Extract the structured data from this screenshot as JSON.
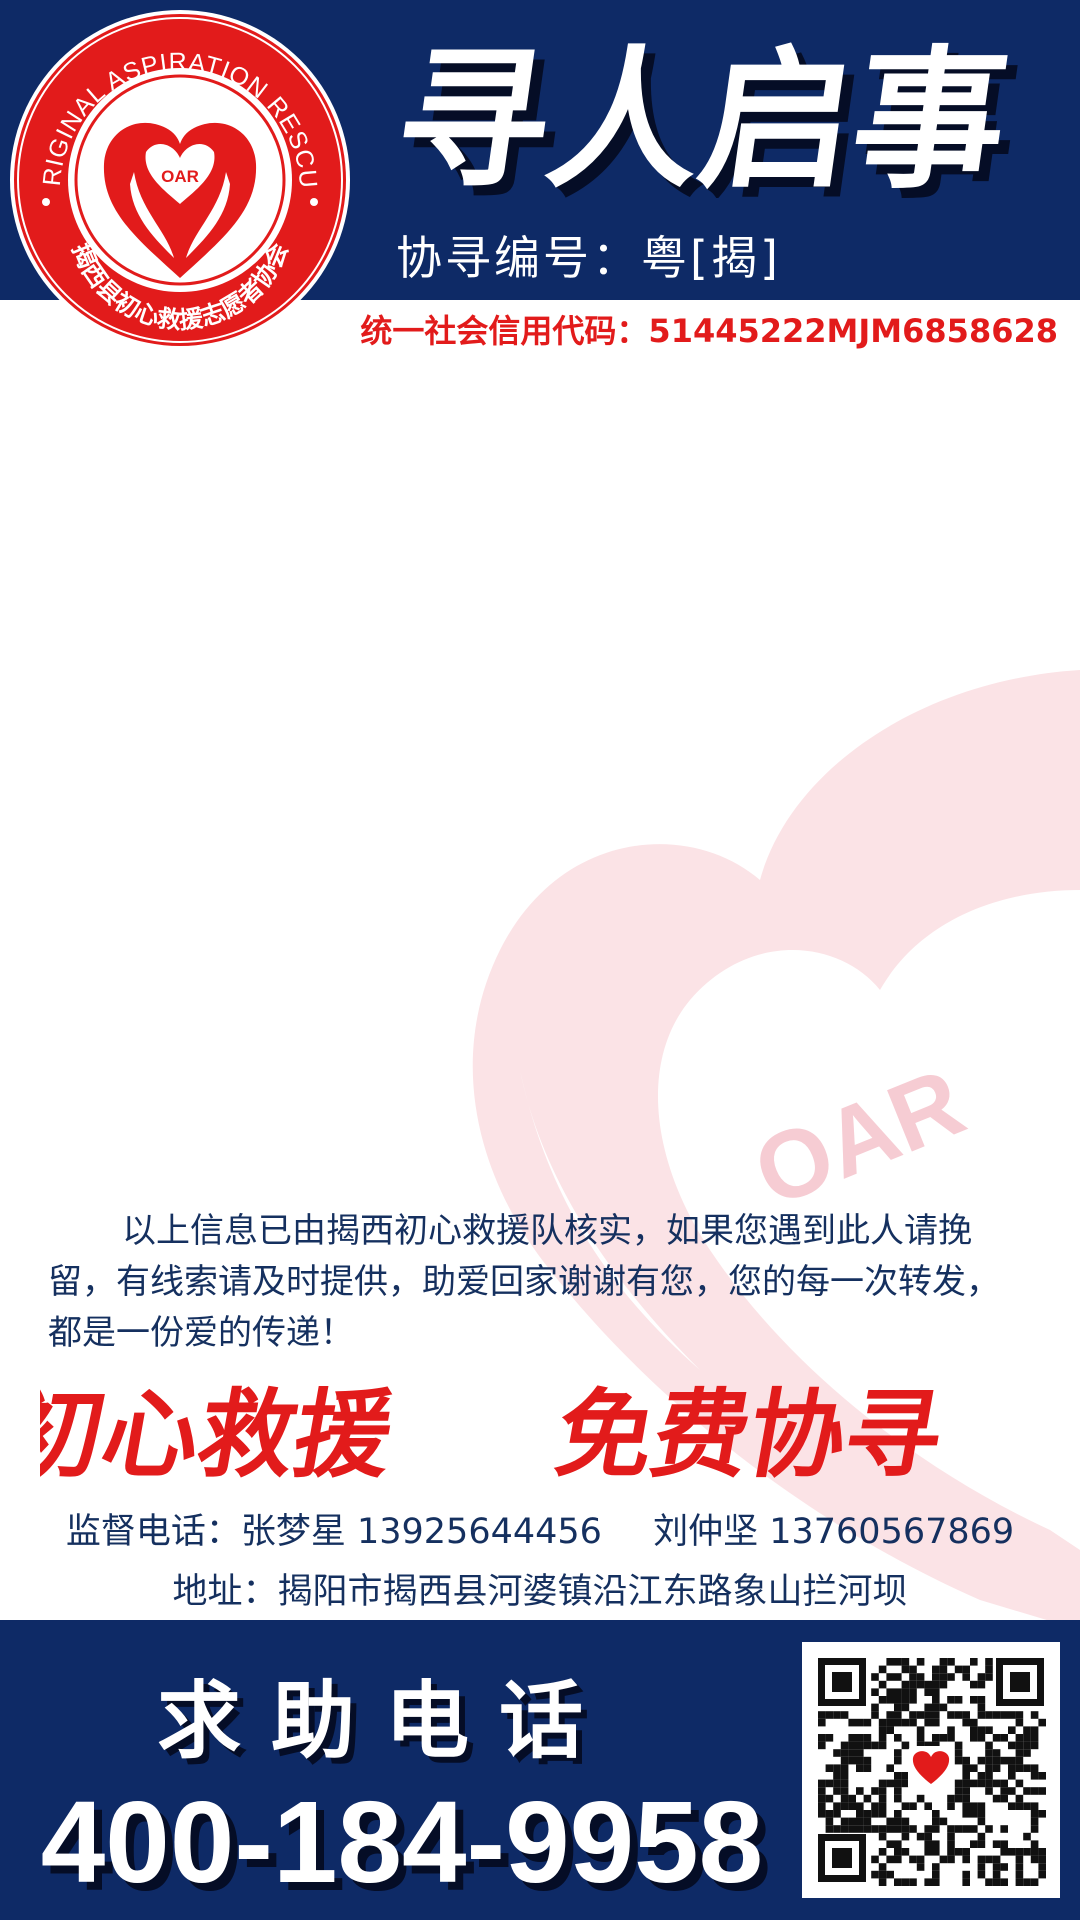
{
  "header": {
    "title": "寻人启事",
    "case_number_label": "协寻编号：",
    "case_number_value": "粤[揭]",
    "credit_code_label": "统一社会信用代码：",
    "credit_code_value": "51445222MJM6858628"
  },
  "seal": {
    "outer_text_en": "ORIGINAL ASPIRATION RESCUE",
    "outer_text_cn": "揭西县初心救援志愿者协会",
    "badge": "OAR"
  },
  "watermark_text": "OAR",
  "notice": {
    "body": "以上信息已由揭西初心救援队核实，如果您遇到此人请挽留，有线索请及时提供，助爱回家谢谢有您，您的每一次转发，都是一份爱的传递！"
  },
  "slogan": {
    "left": "初心救援",
    "right": "免费协寻"
  },
  "contacts": {
    "label": "监督电话：",
    "person1_name": "张梦星",
    "person1_phone": "13925644456",
    "person2_name": "刘仲坚",
    "person2_phone": "13760567869",
    "address_label": "地址：",
    "address": "揭阳市揭西县河婆镇沿江东路象山拦河坝"
  },
  "helpline": {
    "label": "求助电话",
    "number": "400-184-9958"
  },
  "colors": {
    "navy": "#0e2a66",
    "red": "#e21b1b",
    "text": "#15305f",
    "watermark": "#fbe3e6"
  },
  "icons": {
    "qr": "qr-code-icon",
    "heart": "heart-hands-icon"
  }
}
